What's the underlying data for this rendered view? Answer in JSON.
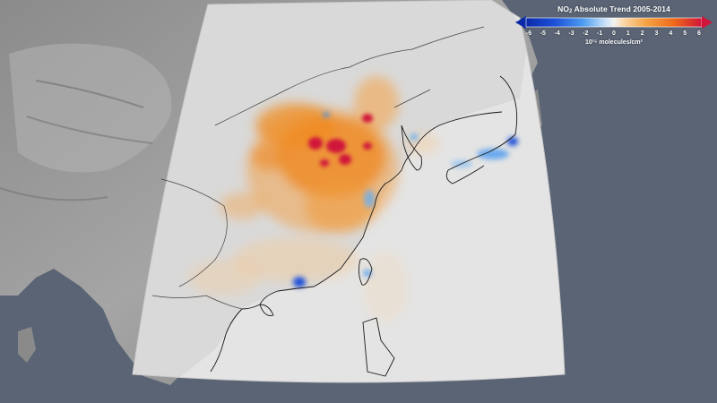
{
  "map": {
    "region": "East Asia",
    "background_color": "#5a6475",
    "data_area_color": "#e6e6e6"
  },
  "legend": {
    "title_prefix": "NO",
    "title_subscript": "2",
    "title_suffix": " Absolute Trend 2005-2014",
    "ticks": [
      "-6",
      "-5",
      "-4",
      "-3",
      "-2",
      "-1",
      "0",
      "1",
      "2",
      "3",
      "4",
      "5",
      "6"
    ],
    "units": "10¹⁵ molecules/cm²",
    "colors": {
      "strong_decrease": "#1d4fd8",
      "decrease": "#2f8ef0",
      "weak_decrease": "#a6d2f7",
      "neutral": "#f2f2f2",
      "weak_increase": "#f9c588",
      "increase": "#f08a1e",
      "strong_increase": "#d0143a"
    }
  }
}
